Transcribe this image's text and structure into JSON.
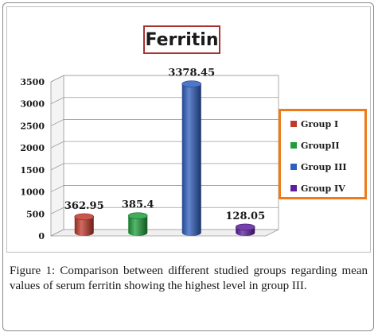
{
  "chart_data": {
    "type": "bar",
    "title": "Ferritin",
    "categories": [
      "Group I",
      "GroupII",
      "Group III",
      "Group IV"
    ],
    "values": [
      362.95,
      385.4,
      3378.45,
      128.05
    ],
    "value_labels": [
      "362.95",
      "385.4",
      "3378.45",
      "128.05"
    ],
    "colors": [
      "#c0392b",
      "#1e9e3a",
      "#2e5fbf",
      "#5b1f9e"
    ],
    "ylim": [
      0,
      3500
    ],
    "yticks": [
      "0",
      "500",
      "1000",
      "1500",
      "2000",
      "2500",
      "3000",
      "3500"
    ],
    "grid": true,
    "legend_position": "right",
    "style": "3d-cylinder"
  },
  "caption": "Figure 1: Comparison between different studied groups regarding mean values of serum ferritin showing the highest level in group III."
}
